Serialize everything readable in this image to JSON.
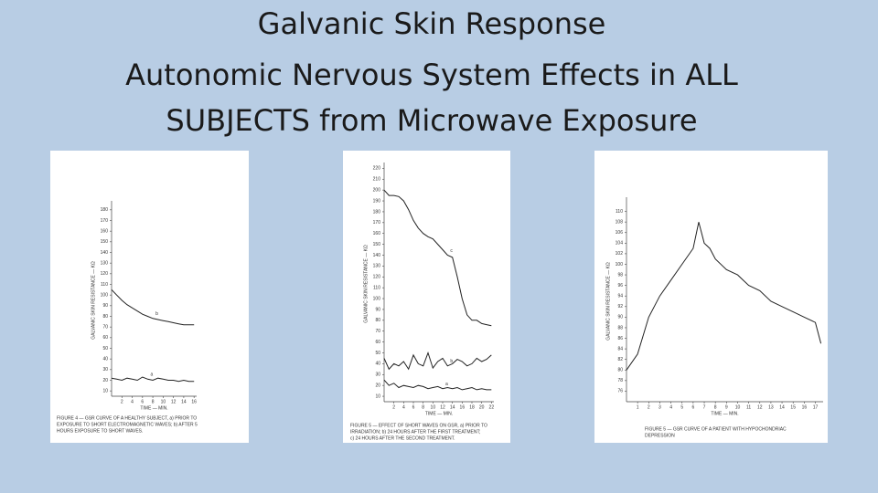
{
  "title": [
    "Galvanic Skin Response",
    "Autonomic Nervous System Effects in ALL",
    "SUBJECTS from Microwave Exposure"
  ],
  "chart_data": [
    {
      "type": "line",
      "ylabel": "GALVANIC SKIN RESISTANCE — KΩ",
      "xlabel": "TIME — MIN.",
      "caption": [
        "FIGURE 4 — GSR CURVE OF A HEALTHY SUBJECT, a) PRIOR TO",
        "EXPOSURE TO SHORT ELECTROMAGNETIC WAVES; b) AFTER 5",
        "HOURS EXPOSURE TO SHORT WAVES."
      ],
      "x": [
        0,
        1,
        2,
        3,
        4,
        5,
        6,
        7,
        8,
        9,
        10,
        11,
        12,
        13,
        14,
        15,
        16
      ],
      "series": [
        {
          "name": "b",
          "color": "#222",
          "values": [
            105,
            100,
            95,
            91,
            88,
            85,
            82,
            80,
            78,
            77,
            76,
            75,
            74,
            73,
            72,
            72,
            72
          ]
        },
        {
          "name": "a",
          "color": "#222",
          "values": [
            22,
            21,
            20,
            22,
            21,
            20,
            23,
            21,
            20,
            22,
            21,
            20,
            20,
            19,
            20,
            19,
            19
          ]
        }
      ],
      "xlim": [
        0,
        16.5
      ],
      "xticks": [
        2,
        4,
        6,
        8,
        10,
        12,
        14,
        16
      ],
      "ylim": [
        5,
        185
      ],
      "yticks": [
        10,
        20,
        30,
        40,
        50,
        60,
        70,
        80,
        90,
        100,
        110,
        120,
        130,
        140,
        150,
        160,
        170,
        180
      ]
    },
    {
      "type": "line",
      "ylabel": "GALVANIC SKIN RESISTANCE — KΩ",
      "xlabel": "TIME — MIN.",
      "caption": [
        "FIGURE 5 — EFFECT OF SHORT WAVES ON GSR, a) PRIOR TO",
        "IRRADIATION; b) 24 HOURS AFTER THE FIRST TREATMENT;",
        "c) 24 HOURS AFTER THE SECOND TREATMENT."
      ],
      "x": [
        0,
        1,
        2,
        3,
        4,
        5,
        6,
        7,
        8,
        9,
        10,
        11,
        12,
        13,
        14,
        15,
        16,
        17,
        18,
        19,
        20,
        21,
        22
      ],
      "series": [
        {
          "name": "c",
          "color": "#222",
          "values": [
            200,
            195,
            195,
            194,
            190,
            182,
            172,
            165,
            160,
            157,
            155,
            150,
            145,
            140,
            138,
            120,
            100,
            85,
            80,
            80,
            77,
            76,
            75
          ]
        },
        {
          "name": "b",
          "color": "#222",
          "values": [
            45,
            35,
            40,
            38,
            42,
            35,
            48,
            40,
            38,
            50,
            36,
            42,
            45,
            38,
            40,
            44,
            42,
            38,
            40,
            45,
            42,
            44,
            48
          ]
        },
        {
          "name": "a",
          "color": "#222",
          "values": [
            25,
            20,
            22,
            18,
            20,
            19,
            18,
            20,
            19,
            17,
            18,
            19,
            17,
            18,
            17,
            18,
            16,
            17,
            18,
            16,
            17,
            16,
            16
          ]
        }
      ],
      "xlim": [
        0,
        22.5
      ],
      "xticks": [
        2,
        4,
        6,
        8,
        10,
        12,
        14,
        16,
        18,
        20,
        22
      ],
      "ylim": [
        5,
        222
      ],
      "yticks": [
        10,
        20,
        30,
        40,
        50,
        60,
        70,
        80,
        90,
        100,
        110,
        120,
        130,
        140,
        150,
        160,
        170,
        180,
        190,
        200,
        210,
        220
      ]
    },
    {
      "type": "line",
      "ylabel": "GALVANIC SKIN RESISTANCE — KΩ",
      "xlabel": "TIME — MIN.",
      "caption": [
        "FIGURE 5 — GSR CURVE OF A PATIENT WITH HYPOCHONDRIAC",
        "DEPRESSION"
      ],
      "x": [
        0,
        1,
        2,
        3,
        4,
        5,
        6,
        6.5,
        7,
        7.5,
        8,
        9,
        10,
        11,
        12,
        13,
        14,
        15,
        16,
        17,
        17.5
      ],
      "series": [
        {
          "color": "#222",
          "values": [
            80,
            83,
            90,
            94,
            97,
            100,
            103,
            108,
            104,
            103,
            101,
            99,
            98,
            96,
            95,
            93,
            92,
            91,
            90,
            89,
            85
          ]
        }
      ],
      "xlim": [
        0,
        17.7
      ],
      "xticks": [
        1,
        2,
        3,
        4,
        5,
        6,
        7,
        8,
        9,
        10,
        11,
        12,
        13,
        14,
        15,
        16,
        17
      ],
      "ylim": [
        74,
        112
      ],
      "yticks": [
        76,
        78,
        80,
        82,
        84,
        86,
        88,
        90,
        92,
        94,
        96,
        98,
        100,
        102,
        104,
        106,
        108,
        110
      ]
    }
  ]
}
